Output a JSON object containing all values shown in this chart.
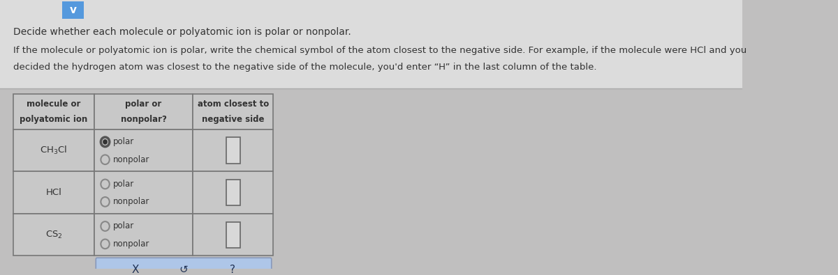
{
  "bg_color": "#c0bfbf",
  "top_bg": "#dcdcdc",
  "header_text_line1": "Decide whether each molecule or polyatomic ion is polar or nonpolar.",
  "header_text_line2": "If the molecule or polyatomic ion is polar, write the chemical symbol of the atom closest to the negative side. For example, if the molecule were HCl and you",
  "header_text_line3": "decided the hydrogen atom was closest to the negative side of the molecule, you'd enter “H” in the last column of the table.",
  "col_headers": [
    "molecule or\npolyatomic ion",
    "polar or\nnonpolar?",
    "atom closest to\nnegative side"
  ],
  "rows": [
    {
      "molecule": "CH$_3$Cl",
      "polar_selected": true
    },
    {
      "molecule": "HCl",
      "polar_selected": false
    },
    {
      "molecule": "CS$_2$",
      "polar_selected": false
    }
  ],
  "text_color": "#333333",
  "border_color": "#777777",
  "cell_bg": "#c8c8c8",
  "header_bg": "#c8c8c8",
  "radio_outer": "#888888",
  "radio_filled_outer": "#555555",
  "radio_filled_inner": "#333333",
  "answer_box_bg": "#d8d8d8",
  "answer_box_border": "#666666",
  "button_bg": "#aec6e8",
  "button_border": "#8899bb",
  "button_text_color": "#223355",
  "chevron_box_bg": "#5599dd",
  "chevron_color": "#ffffff",
  "sep_line_color": "#aaaaaa"
}
